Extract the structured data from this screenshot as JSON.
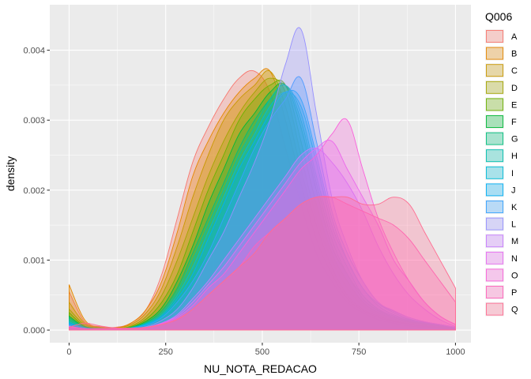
{
  "chart_data": {
    "type": "area",
    "xlabel": "NU_NOTA_REDACAO",
    "ylabel": "density",
    "xlim": [
      -50,
      1040
    ],
    "ylim": [
      -0.00018,
      0.00465
    ],
    "x_ticks": [
      {
        "value": 0,
        "label": "0"
      },
      {
        "value": 250,
        "label": "250"
      },
      {
        "value": 500,
        "label": "500"
      },
      {
        "value": 750,
        "label": "750"
      },
      {
        "value": 1000,
        "label": "1000"
      }
    ],
    "y_ticks": [
      {
        "value": 0,
        "label": "0.000"
      },
      {
        "value": 0.001,
        "label": "0.001"
      },
      {
        "value": 0.002,
        "label": "0.002"
      },
      {
        "value": 0.003,
        "label": "0.003"
      },
      {
        "value": 0.004,
        "label": "0.004"
      }
    ],
    "grid": true,
    "legend_title": "Q006",
    "legend_position": "right",
    "x": [
      0,
      40,
      80,
      120,
      160,
      200,
      240,
      280,
      320,
      360,
      400,
      440,
      480,
      520,
      560,
      600,
      640,
      680,
      720,
      760,
      800,
      840,
      880,
      920,
      960,
      1000
    ],
    "series": [
      {
        "name": "A",
        "color": "#F8766D",
        "values": [
          0.00055,
          0.00012,
          5e-05,
          4e-05,
          0.0001,
          0.0003,
          0.0008,
          0.0016,
          0.0024,
          0.0029,
          0.0033,
          0.0036,
          0.0037,
          0.0034,
          0.0026,
          0.0018,
          0.0011,
          0.0007,
          0.0004,
          0.00025,
          0.00015,
          0.0001,
          6e-05,
          4e-05,
          3e-05,
          1e-05
        ]
      },
      {
        "name": "B",
        "color": "#E58700",
        "values": [
          0.00065,
          0.00015,
          4e-05,
          3e-05,
          0.0001,
          0.0003,
          0.0007,
          0.0014,
          0.0022,
          0.0027,
          0.0031,
          0.0034,
          0.0036,
          0.0037,
          0.003,
          0.0021,
          0.0013,
          0.0008,
          0.00045,
          0.00028,
          0.00018,
          0.00012,
          8e-05,
          5e-05,
          3e-05,
          1e-05
        ]
      },
      {
        "name": "C",
        "color": "#C99800",
        "values": [
          0.0004,
          0.0001,
          4e-05,
          3e-05,
          8e-05,
          0.00025,
          0.0006,
          0.0012,
          0.0019,
          0.0025,
          0.003,
          0.0033,
          0.0035,
          0.0037,
          0.0032,
          0.0023,
          0.0015,
          0.0009,
          0.0005,
          0.0003,
          0.0002,
          0.00013,
          9e-05,
          6e-05,
          4e-05,
          2e-05
        ]
      },
      {
        "name": "D",
        "color": "#A3A500",
        "values": [
          0.0003,
          8e-05,
          3e-05,
          2e-05,
          6e-05,
          0.0002,
          0.0005,
          0.001,
          0.0016,
          0.0022,
          0.0027,
          0.0031,
          0.0034,
          0.0036,
          0.0034,
          0.0025,
          0.0016,
          0.001,
          0.0006,
          0.00035,
          0.00022,
          0.00014,
          0.0001,
          7e-05,
          5e-05,
          2e-05
        ]
      },
      {
        "name": "E",
        "color": "#6BB100",
        "values": [
          0.00025,
          6e-05,
          3e-05,
          2e-05,
          5e-05,
          0.00016,
          0.0004,
          0.0008,
          0.0014,
          0.002,
          0.0025,
          0.003,
          0.0033,
          0.0035,
          0.0035,
          0.0027,
          0.0018,
          0.0011,
          0.0007,
          0.0004,
          0.00025,
          0.00016,
          0.00011,
          8e-05,
          5e-05,
          2e-05
        ]
      },
      {
        "name": "F",
        "color": "#00BA38",
        "values": [
          0.0002,
          5e-05,
          2e-05,
          2e-05,
          4e-05,
          0.00013,
          0.00032,
          0.0007,
          0.0012,
          0.0018,
          0.0023,
          0.0028,
          0.0031,
          0.0034,
          0.0035,
          0.0029,
          0.002,
          0.0012,
          0.0008,
          0.00045,
          0.00028,
          0.00018,
          0.00012,
          9e-05,
          6e-05,
          3e-05
        ]
      },
      {
        "name": "G",
        "color": "#00BF7D",
        "values": [
          0.00018,
          4e-05,
          2e-05,
          2e-05,
          4e-05,
          0.00011,
          0.00028,
          0.0006,
          0.0011,
          0.0016,
          0.0021,
          0.0026,
          0.003,
          0.0033,
          0.0035,
          0.003,
          0.0021,
          0.0013,
          0.0008,
          0.0005,
          0.0003,
          0.0002,
          0.00013,
          0.0001,
          7e-05,
          3e-05
        ]
      },
      {
        "name": "H",
        "color": "#00C0AF",
        "values": [
          0.00015,
          4e-05,
          2e-05,
          2e-05,
          3e-05,
          0.0001,
          0.00025,
          0.00055,
          0.001,
          0.0015,
          0.002,
          0.0025,
          0.0029,
          0.0033,
          0.0035,
          0.0031,
          0.0022,
          0.0014,
          0.0009,
          0.0005,
          0.0003,
          0.0002,
          0.00014,
          0.0001,
          7e-05,
          3e-05
        ]
      },
      {
        "name": "I",
        "color": "#00BCD8",
        "values": [
          0.00012,
          3e-05,
          2e-05,
          2e-05,
          3e-05,
          9e-05,
          0.00022,
          0.0005,
          0.0009,
          0.0014,
          0.0019,
          0.0024,
          0.0028,
          0.0032,
          0.0034,
          0.0032,
          0.0024,
          0.0015,
          0.001,
          0.0006,
          0.00035,
          0.00022,
          0.00015,
          0.0001,
          7e-05,
          3e-05
        ]
      },
      {
        "name": "J",
        "color": "#00B0F6",
        "values": [
          0.0001,
          3e-05,
          2e-05,
          2e-05,
          3e-05,
          8e-05,
          0.0002,
          0.00045,
          0.0008,
          0.0013,
          0.0018,
          0.0023,
          0.0027,
          0.0031,
          0.0034,
          0.0033,
          0.0025,
          0.0016,
          0.001,
          0.0006,
          0.00038,
          0.00025,
          0.00016,
          0.00011,
          8e-05,
          4e-05
        ]
      },
      {
        "name": "K",
        "color": "#35A2FF",
        "values": [
          8e-05,
          3e-05,
          2e-05,
          2e-05,
          3e-05,
          7e-05,
          0.00018,
          0.0004,
          0.0007,
          0.0011,
          0.0016,
          0.0021,
          0.0026,
          0.003,
          0.0033,
          0.0036,
          0.0027,
          0.0017,
          0.0011,
          0.0007,
          0.0004,
          0.00027,
          0.00018,
          0.00012,
          8e-05,
          4e-05
        ]
      },
      {
        "name": "L",
        "color": "#9590FF",
        "values": [
          6e-05,
          2e-05,
          2e-05,
          2e-05,
          2e-05,
          5e-05,
          0.00014,
          0.0003,
          0.0006,
          0.001,
          0.0014,
          0.0019,
          0.0024,
          0.003,
          0.0038,
          0.0043,
          0.0031,
          0.0019,
          0.0012,
          0.0007,
          0.0004,
          0.00028,
          0.00018,
          0.00012,
          8e-05,
          4e-05
        ]
      },
      {
        "name": "M",
        "color": "#C77CFF",
        "values": [
          5e-05,
          2e-05,
          2e-05,
          2e-05,
          2e-05,
          4e-05,
          0.0001,
          0.00022,
          0.00045,
          0.0007,
          0.001,
          0.0013,
          0.0016,
          0.0019,
          0.0022,
          0.0025,
          0.0026,
          0.0024,
          0.0021,
          0.0017,
          0.0012,
          0.0008,
          0.0005,
          0.0003,
          0.00015,
          5e-05
        ]
      },
      {
        "name": "N",
        "color": "#E76BF3",
        "values": [
          5e-05,
          2e-05,
          2e-05,
          2e-05,
          2e-05,
          4e-05,
          0.0001,
          0.0002,
          0.0004,
          0.00065,
          0.0009,
          0.0012,
          0.0015,
          0.0018,
          0.0021,
          0.0024,
          0.0026,
          0.0027,
          0.0023,
          0.0019,
          0.0015,
          0.001,
          0.0007,
          0.0004,
          0.0002,
          8e-05
        ]
      },
      {
        "name": "O",
        "color": "#FA62DB",
        "values": [
          4e-05,
          2e-05,
          2e-05,
          2e-05,
          2e-05,
          4e-05,
          9e-05,
          0.00018,
          0.00035,
          0.0006,
          0.0008,
          0.0011,
          0.0014,
          0.0017,
          0.002,
          0.0023,
          0.0025,
          0.0028,
          0.003,
          0.0023,
          0.0016,
          0.0011,
          0.0007,
          0.0004,
          0.0002,
          8e-05
        ]
      },
      {
        "name": "P",
        "color": "#FF62BC",
        "values": [
          4e-05,
          2e-05,
          2e-05,
          2e-05,
          2e-05,
          3e-05,
          8e-05,
          0.00016,
          0.0003,
          0.0005,
          0.0007,
          0.0009,
          0.0012,
          0.0014,
          0.0016,
          0.0018,
          0.0019,
          0.0019,
          0.0018,
          0.0017,
          0.0016,
          0.0015,
          0.0013,
          0.001,
          0.0007,
          0.0004
        ]
      },
      {
        "name": "Q",
        "color": "#FF6C91",
        "values": [
          4e-05,
          0.0001,
          6e-05,
          3e-05,
          3e-05,
          4e-05,
          8e-05,
          0.00015,
          0.0003,
          0.0005,
          0.0007,
          0.0009,
          0.0011,
          0.0014,
          0.0016,
          0.0018,
          0.0019,
          0.0019,
          0.0019,
          0.0018,
          0.0018,
          0.0019,
          0.0018,
          0.0014,
          0.001,
          0.0006
        ]
      }
    ]
  }
}
